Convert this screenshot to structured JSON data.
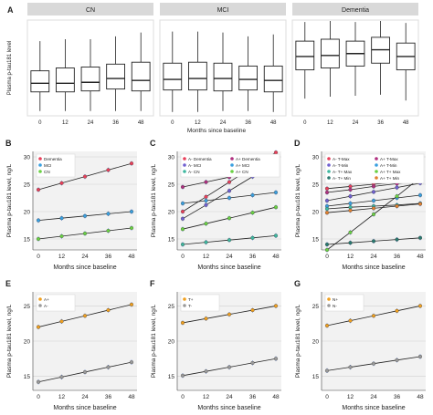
{
  "colors": {
    "box_fill": "#ffffff",
    "box_stroke": "#222222",
    "strip_fill": "#d9d9d9",
    "panel_bg": "#f2f2f2",
    "grid": "#ffffff",
    "line": "#222222",
    "error_bar": "#2255cc"
  },
  "chart_data": [
    {
      "panel": "A",
      "type": "box",
      "facets": [
        "CN",
        "MCI",
        "Dementia"
      ],
      "categories": [
        "0",
        "12",
        "24",
        "36",
        "48"
      ],
      "ylabel": "Plasma p-tau181 level",
      "xlabel": "Months since baseline",
      "ylim": [
        0,
        1
      ],
      "boxes": {
        "CN": [
          {
            "whislo": 0.05,
            "q1": 0.25,
            "med": 0.34,
            "q3": 0.47,
            "whishi": 0.78
          },
          {
            "whislo": 0.05,
            "q1": 0.25,
            "med": 0.34,
            "q3": 0.5,
            "whishi": 0.8
          },
          {
            "whislo": 0.05,
            "q1": 0.26,
            "med": 0.35,
            "q3": 0.51,
            "whishi": 0.8
          },
          {
            "whislo": 0.05,
            "q1": 0.28,
            "med": 0.39,
            "q3": 0.54,
            "whishi": 0.83
          },
          {
            "whislo": 0.05,
            "q1": 0.26,
            "med": 0.37,
            "q3": 0.56,
            "whishi": 0.87
          }
        ],
        "MCI": [
          {
            "whislo": 0.04,
            "q1": 0.27,
            "med": 0.38,
            "q3": 0.55,
            "whishi": 0.88
          },
          {
            "whislo": 0.04,
            "q1": 0.27,
            "med": 0.39,
            "q3": 0.56,
            "whishi": 0.88
          },
          {
            "whislo": 0.05,
            "q1": 0.26,
            "med": 0.39,
            "q3": 0.55,
            "whishi": 0.87
          },
          {
            "whislo": 0.05,
            "q1": 0.27,
            "med": 0.38,
            "q3": 0.52,
            "whishi": 0.83
          },
          {
            "whislo": 0.04,
            "q1": 0.25,
            "med": 0.37,
            "q3": 0.52,
            "whishi": 0.85
          }
        ],
        "Dementia": [
          {
            "whislo": 0.18,
            "q1": 0.48,
            "med": 0.62,
            "q3": 0.78,
            "whishi": 0.98
          },
          {
            "whislo": 0.2,
            "q1": 0.5,
            "med": 0.63,
            "q3": 0.8,
            "whishi": 0.99
          },
          {
            "whislo": 0.21,
            "q1": 0.52,
            "med": 0.65,
            "q3": 0.78,
            "whishi": 0.98
          },
          {
            "whislo": 0.22,
            "q1": 0.55,
            "med": 0.69,
            "q3": 0.82,
            "whishi": 0.99
          },
          {
            "whislo": 0.16,
            "q1": 0.48,
            "med": 0.62,
            "q3": 0.76,
            "whishi": 0.97
          }
        ]
      }
    },
    {
      "panel": "B",
      "type": "line",
      "x": [
        0,
        12,
        24,
        36,
        48
      ],
      "xlabel": "Months since baseline",
      "ylabel": "Plasma p-tau181 level, ng/L",
      "ylim": [
        13,
        31
      ],
      "yticks": [
        15,
        20,
        25,
        30
      ],
      "legend_position": "top-left",
      "series": [
        {
          "name": "Dementia",
          "color": "#e8405a",
          "values": [
            24.0,
            25.2,
            26.4,
            27.6,
            28.8
          ]
        },
        {
          "name": "MCI",
          "color": "#3aa0e0",
          "values": [
            18.4,
            18.8,
            19.2,
            19.6,
            20.0
          ]
        },
        {
          "name": "CN",
          "color": "#6ad044",
          "values": [
            15.0,
            15.5,
            16.0,
            16.5,
            17.0
          ]
        }
      ]
    },
    {
      "panel": "C",
      "type": "line",
      "x": [
        0,
        12,
        24,
        36,
        48
      ],
      "xlabel": "Months since baseline",
      "ylabel": "Plasma p-tau181 level, ng/L",
      "ylim": [
        13,
        31
      ],
      "yticks": [
        15,
        20,
        25,
        30
      ],
      "legend_position": "top",
      "series": [
        {
          "name": "A- Dementia",
          "color": "#e8405a",
          "values": [
            20.0,
            22.7,
            25.4,
            28.1,
            30.8
          ]
        },
        {
          "name": "A+ Dementia",
          "color": "#b03080",
          "values": [
            24.5,
            25.4,
            26.3,
            27.2,
            28.0
          ]
        },
        {
          "name": "A- MCI",
          "color": "#7060d0",
          "values": [
            18.7,
            21.2,
            23.8,
            26.4,
            29.0
          ]
        },
        {
          "name": "A+ MCI",
          "color": "#3aa0e0",
          "values": [
            21.5,
            22.0,
            22.5,
            23.0,
            23.5
          ]
        },
        {
          "name": "A- CN",
          "color": "#3fb8a0",
          "values": [
            14.0,
            14.4,
            14.8,
            15.2,
            15.6
          ]
        },
        {
          "name": "A+ CN",
          "color": "#6ad044",
          "values": [
            16.8,
            17.8,
            18.8,
            19.8,
            20.8
          ]
        }
      ]
    },
    {
      "panel": "D",
      "type": "line",
      "x": [
        0,
        12,
        24,
        36,
        48
      ],
      "xlabel": "Months since baseline",
      "ylabel": "Plasma p-tau181 level, ng/L",
      "ylim": [
        13,
        31
      ],
      "yticks": [
        15,
        20,
        25,
        30
      ],
      "legend_position": "top",
      "series": [
        {
          "name": "A- T-Max",
          "color": "#e8405a",
          "values": [
            24.2,
            24.6,
            25.0,
            25.4,
            25.8
          ]
        },
        {
          "name": "A+ T-Max",
          "color": "#b03080",
          "values": [
            23.5,
            24.0,
            24.6,
            25.1,
            25.6
          ]
        },
        {
          "name": "A- T-Min",
          "color": "#7060d0",
          "values": [
            22.0,
            22.8,
            23.6,
            24.4,
            25.2
          ]
        },
        {
          "name": "A+ T-Min",
          "color": "#3aa0e0",
          "values": [
            21.0,
            21.5,
            22.0,
            22.5,
            23.0
          ]
        },
        {
          "name": "A- T+ Max",
          "color": "#3fb8a0",
          "values": [
            20.5,
            20.8,
            21.0,
            21.2,
            21.5
          ]
        },
        {
          "name": "A+ T+ Max",
          "color": "#6ad044",
          "values": [
            13.0,
            16.2,
            19.5,
            22.8,
            26.2
          ]
        },
        {
          "name": "A- T+ Min",
          "color": "#2a7a70",
          "values": [
            14.0,
            14.3,
            14.6,
            14.9,
            15.2
          ]
        },
        {
          "name": "A+ T+ Min",
          "color": "#e08030",
          "values": [
            19.8,
            20.2,
            20.6,
            21.0,
            21.4
          ]
        }
      ]
    },
    {
      "panel": "E",
      "type": "line",
      "x": [
        0,
        12,
        24,
        36,
        48
      ],
      "xlabel": "Months since baseline",
      "ylabel": "Plasma p-tau181 level, ng/L",
      "ylim": [
        13,
        27
      ],
      "yticks": [
        15,
        20,
        25
      ],
      "legend_position": "top-left",
      "series": [
        {
          "name": "A+",
          "color": "#f0a020",
          "values": [
            22.0,
            22.8,
            23.6,
            24.4,
            25.2
          ]
        },
        {
          "name": "A-",
          "color": "#9a9a9a",
          "values": [
            14.2,
            14.9,
            15.6,
            16.3,
            17.0
          ]
        }
      ]
    },
    {
      "panel": "F",
      "type": "line",
      "x": [
        0,
        12,
        24,
        36,
        48
      ],
      "xlabel": "Months since baseline",
      "ylabel": "Plasma p-tau181 level, ng/L",
      "ylim": [
        13,
        27
      ],
      "yticks": [
        15,
        20,
        25
      ],
      "legend_position": "top-left",
      "series": [
        {
          "name": "T+",
          "color": "#f0a020",
          "values": [
            22.6,
            23.2,
            23.8,
            24.4,
            25.0
          ]
        },
        {
          "name": "T-",
          "color": "#9a9a9a",
          "values": [
            15.1,
            15.7,
            16.3,
            16.9,
            17.5
          ]
        }
      ]
    },
    {
      "panel": "G",
      "type": "line",
      "x": [
        0,
        12,
        24,
        36,
        48
      ],
      "xlabel": "Months since baseline",
      "ylabel": "Plasma p-tau181 level, ng/L",
      "ylim": [
        13,
        27
      ],
      "yticks": [
        15,
        20,
        25
      ],
      "legend_position": "top-left",
      "series": [
        {
          "name": "N+",
          "color": "#f0a020",
          "values": [
            22.2,
            22.9,
            23.6,
            24.3,
            25.0
          ]
        },
        {
          "name": "N-",
          "color": "#9a9a9a",
          "values": [
            15.8,
            16.3,
            16.8,
            17.3,
            17.8
          ]
        }
      ]
    }
  ]
}
